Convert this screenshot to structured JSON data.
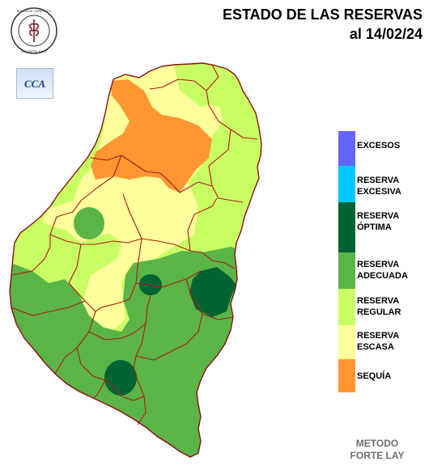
{
  "header": {
    "title_line1": "ESTADO DE LAS RESERVAS",
    "title_line2": "al 14/02/24"
  },
  "logos": {
    "bolsa_text": "BOLSA DE CEREALES DE ENTRE RIOS",
    "cca_text": "CCA"
  },
  "legend": [
    {
      "label": "EXCESOS",
      "color": "#6464ff"
    },
    {
      "label": "RESERVA\nEXCESIVA",
      "color": "#00c8ff"
    },
    {
      "label": "RESERVA\nÓPTIMA",
      "color": "#006432"
    },
    {
      "label": "RESERVA\nADECUADA",
      "color": "#5ab446"
    },
    {
      "label": "RESERVA\nREGULAR",
      "color": "#c8ff64"
    },
    {
      "label": "RESERVA\nESCASA",
      "color": "#ffff9b"
    },
    {
      "label": "SEQUÍA",
      "color": "#ff9632"
    }
  ],
  "footer": {
    "method_line1": "METODO",
    "method_line2": "FORTE LAY"
  }
}
